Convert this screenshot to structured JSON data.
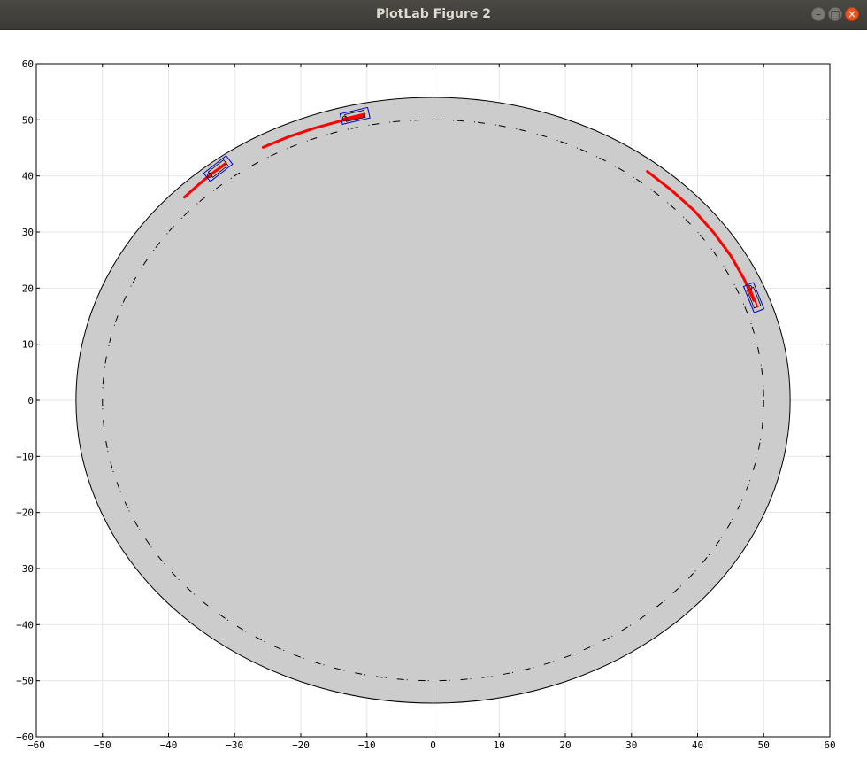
{
  "window": {
    "title": "PlotLab Figure 2",
    "controls": {
      "minimize": "–",
      "maximize": "□",
      "close": "×"
    }
  },
  "chart_data": {
    "type": "line",
    "title": "",
    "xlabel": "",
    "ylabel": "",
    "xlim": [
      -60,
      60
    ],
    "ylim": [
      -60,
      60
    ],
    "grid": true,
    "xticks": [
      -60,
      -50,
      -40,
      -30,
      -20,
      -10,
      0,
      10,
      20,
      30,
      40,
      50,
      60
    ],
    "yticks": [
      -60,
      -50,
      -40,
      -30,
      -20,
      -10,
      0,
      10,
      20,
      30,
      40,
      50,
      60
    ],
    "xtick_labels": [
      "−60",
      "−50",
      "−40",
      "−30",
      "−20",
      "−10",
      "0",
      "10",
      "20",
      "30",
      "40",
      "50",
      "60"
    ],
    "ytick_labels": [
      "−60",
      "−50",
      "−40",
      "−30",
      "−20",
      "−10",
      "0",
      "10",
      "20",
      "30",
      "40",
      "50",
      "60"
    ],
    "colors": {
      "track_fill": "#cccccc",
      "track_edge": "#000000",
      "path": "#ff0000",
      "vehicle": "#0000cc",
      "grid": "#e6e6e6"
    },
    "track": {
      "outer_radius": 54,
      "inner_radius": 50,
      "centerline_radius": 50,
      "start_line": [
        [
          0,
          -54
        ],
        [
          0,
          -50
        ]
      ]
    },
    "paths": [
      {
        "x": [
          -37.6,
          -36.0,
          -34.5,
          -33.0,
          -31.5
        ],
        "y": [
          36.2,
          37.9,
          39.4,
          40.8,
          42.0
        ]
      },
      {
        "x": [
          -25.7,
          -22.0,
          -18.0,
          -14.0,
          -10.5
        ],
        "y": [
          45.1,
          46.9,
          48.5,
          49.8,
          50.7
        ]
      },
      {
        "x": [
          32.4,
          36.0,
          39.5,
          42.5,
          45.0,
          47.0,
          48.5
        ],
        "y": [
          40.8,
          37.5,
          33.8,
          29.8,
          25.8,
          21.7,
          17.8
        ]
      }
    ],
    "vehicles": [
      {
        "x": -32.5,
        "y": 41.3,
        "heading_deg": 38
      },
      {
        "x": -11.8,
        "y": 50.7,
        "heading_deg": 13
      },
      {
        "x": 48.5,
        "y": 18.3,
        "heading_deg": -68
      }
    ]
  }
}
